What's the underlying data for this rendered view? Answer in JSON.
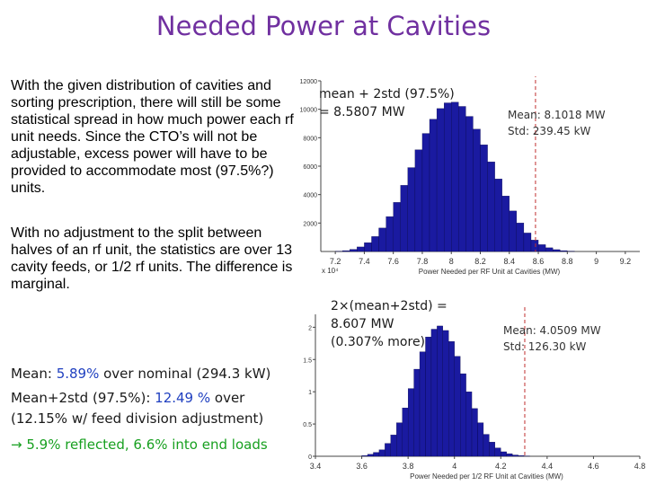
{
  "slide": {
    "title": "Needed Power at Cavities",
    "para1": "With the given distribution of cavities and sorting prescription, there will still be some statistical spread in how much power each rf unit needs. Since the CTO’s will not be adjustable, excess power will have to be provided to accommodate most (97.5%?) units.",
    "para2": "With no adjustment to the split between halves of an rf unit, the statistics are over 13 cavity feeds, or 1/2 rf units. The difference is marginal.",
    "mean_label": "Mean: ",
    "mean_value": "5.89%",
    "mean_rest": " over nominal (294.3 kW)",
    "mean2_label": "Mean+2std (97.5%): ",
    "mean2_value": "12.49 %",
    "mean2_rest": " over",
    "mean2_line2": "(12.15% w/ feed division adjustment)",
    "arrow_symbol": "→",
    "arrow_text": " 5.9% reflected, 6.6% into end loads",
    "colors": {
      "title": "#7030a0",
      "blue": "#2040c0",
      "green": "#18a020",
      "bar": "#1a1aa0",
      "marker": "#c03030"
    }
  },
  "chart_data": [
    {
      "type": "bar",
      "xlabel": "Power Needed per RF Unit at Cavities (MW)",
      "x_multiplier": "x 10⁴",
      "xlim": [
        7.1,
        9.3
      ],
      "x_ticks": [
        "7.2",
        "7.4",
        "7.6",
        "7.8",
        "8",
        "8.2",
        "8.4",
        "8.6",
        "8.8",
        "9",
        "9.2"
      ],
      "ylim": [
        0,
        12000
      ],
      "y_ticks": [
        "2000",
        "4000",
        "6000",
        "8000",
        "10000",
        "12000"
      ],
      "bin_width": 0.05,
      "bin_start": 7.2,
      "values": [
        20,
        60,
        150,
        320,
        620,
        1050,
        1650,
        2450,
        3450,
        4650,
        5900,
        7150,
        8300,
        9300,
        10050,
        10450,
        10500,
        10200,
        9500,
        8600,
        7500,
        6300,
        5100,
        3900,
        2850,
        2000,
        1300,
        800,
        480,
        260,
        130,
        60,
        25,
        10,
        5,
        2,
        1,
        0,
        0,
        0
      ],
      "marker_x": 8.5807,
      "marker_label_1": "mean + 2std (97.5%)",
      "marker_label_2": "= 8.5807 MW",
      "stats_1": "Mean: 8.1018 MW",
      "stats_2": "Std:   239.45 kW"
    },
    {
      "type": "bar",
      "xlabel": "Power Needed per 1/2 RF Unit at Cavities (MW)",
      "x_multiplier": "",
      "xlim": [
        3.4,
        4.8
      ],
      "x_ticks": [
        "3.4",
        "3.6",
        "3.8",
        "4",
        "4.2",
        "4.4",
        "4.6",
        "4.8"
      ],
      "ylim": [
        0,
        2.2
      ],
      "y_ticks": [
        "0",
        "0.5",
        "1",
        "1.5",
        "2"
      ],
      "bin_width": 0.025,
      "bin_start": 3.6,
      "values": [
        0.01,
        0.03,
        0.06,
        0.1,
        0.2,
        0.33,
        0.52,
        0.75,
        1.05,
        1.35,
        1.62,
        1.85,
        1.97,
        2.02,
        1.95,
        1.78,
        1.55,
        1.28,
        1.0,
        0.74,
        0.52,
        0.34,
        0.22,
        0.13,
        0.07,
        0.04,
        0.02,
        0.01,
        0.005,
        0.002
      ],
      "marker_x": 4.3035,
      "marker_label_1": "2×(mean+2std) =",
      "marker_label_2": "8.607 MW",
      "marker_label_3": "(0.307% more)",
      "stats_1": "Mean: 4.0509 MW",
      "stats_2": "Std:   126.30 kW"
    }
  ]
}
